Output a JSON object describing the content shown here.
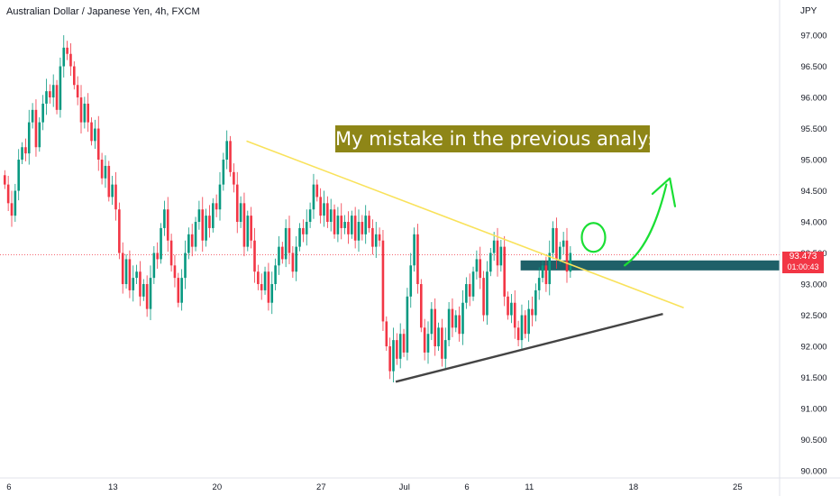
{
  "chart_data": {
    "type": "candlestick",
    "title": "Australian Dollar / Japanese Yen, 4h, FXCM",
    "currency_label": "JPY",
    "y_axis": {
      "range": [
        90.0,
        97.45
      ],
      "ticks": [
        "97.000",
        "96.500",
        "96.000",
        "95.500",
        "95.000",
        "94.500",
        "94.000",
        "93.500",
        "93.000",
        "92.500",
        "92.000",
        "91.500",
        "91.000",
        "90.500",
        "90.000"
      ]
    },
    "x_axis": {
      "ticks": [
        {
          "label": "6",
          "bar": 1
        },
        {
          "label": "13",
          "bar": 31
        },
        {
          "label": "20",
          "bar": 61
        },
        {
          "label": "27",
          "bar": 91
        },
        {
          "label": "Jul",
          "bar": 115
        },
        {
          "label": "6",
          "bar": 133
        },
        {
          "label": "11",
          "bar": 151
        },
        {
          "label": "18",
          "bar": 181
        },
        {
          "label": "25",
          "bar": 211
        }
      ]
    },
    "candles_close": [
      94.6,
      94.3,
      94.1,
      94.5,
      95.0,
      95.2,
      95.1,
      95.6,
      95.8,
      95.2,
      95.6,
      95.9,
      96.1,
      96.0,
      96.2,
      95.8,
      96.5,
      96.8,
      96.7,
      96.5,
      96.2,
      96.0,
      95.6,
      95.9,
      95.6,
      95.3,
      95.5,
      95.0,
      94.7,
      94.9,
      94.4,
      94.6,
      94.2,
      93.5,
      93.0,
      93.4,
      92.9,
      93.1,
      93.2,
      92.8,
      93.0,
      92.6,
      93.1,
      93.5,
      93.4,
      93.9,
      94.2,
      93.7,
      93.3,
      93.1,
      92.7,
      93.1,
      93.5,
      93.8,
      93.6,
      94.0,
      94.2,
      93.7,
      94.1,
      93.9,
      94.3,
      94.2,
      94.6,
      95.0,
      95.3,
      94.8,
      94.6,
      94.0,
      94.3,
      93.6,
      94.1,
      93.7,
      93.2,
      93.0,
      92.9,
      93.2,
      92.7,
      93.0,
      93.3,
      93.6,
      93.4,
      93.9,
      93.5,
      93.2,
      93.6,
      93.9,
      93.8,
      94.0,
      94.2,
      94.6,
      94.4,
      94.1,
      94.3,
      94.0,
      94.2,
      93.8,
      94.1,
      93.9,
      94.0,
      93.8,
      94.1,
      93.7,
      94.0,
      93.8,
      94.1,
      93.9,
      93.6,
      93.8,
      93.7,
      92.4,
      92.0,
      91.6,
      92.1,
      91.8,
      92.2,
      91.9,
      92.8,
      93.3,
      93.8,
      93.0,
      92.3,
      91.9,
      92.2,
      92.6,
      92.0,
      92.3,
      91.8,
      92.1,
      92.6,
      92.3,
      92.5,
      92.2,
      92.7,
      93.0,
      92.8,
      93.2,
      93.4,
      93.1,
      92.5,
      93.2,
      93.5,
      93.7,
      93.3,
      93.6,
      92.8,
      92.5,
      92.7,
      92.3,
      92.1,
      92.5,
      92.2,
      92.6,
      92.5,
      92.9,
      93.1,
      93.3,
      93.0,
      93.5,
      93.9,
      93.4,
      93.6,
      93.7,
      93.2,
      93.5
    ],
    "support_resistance_zone": [
      93.22,
      93.38
    ],
    "last_price": "93.473",
    "countdown": "01:00:43",
    "annotation": "My mistake in the previous analysis",
    "trendlines": [
      {
        "name": "descending-trendline",
        "color": "#f9e25b",
        "from": {
          "bar": 70,
          "price": 95.3
        },
        "to": {
          "bar": 196,
          "price": 92.62
        }
      },
      {
        "name": "ascending-trendline",
        "color": "#ffffff",
        "from": {
          "bar": 113,
          "price": 91.43
        },
        "to": {
          "bar": 190,
          "price": 92.52
        }
      }
    ],
    "colors": {
      "up": "#089981",
      "down": "#f23645",
      "zone": "#1f6068",
      "annotation_bg": "#8e8617",
      "arrow": "#1adf34"
    },
    "grid": false,
    "legend": "none"
  }
}
